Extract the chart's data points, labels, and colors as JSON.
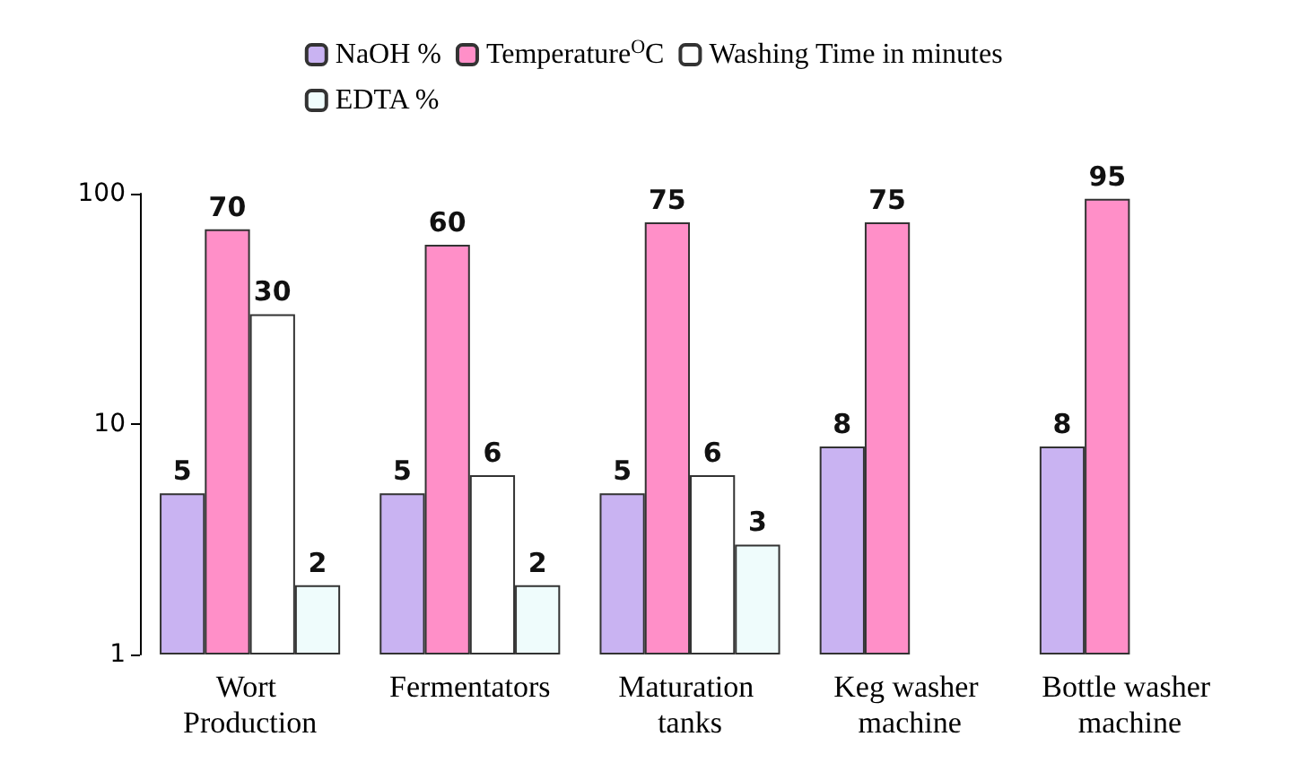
{
  "chart_data": {
    "type": "bar",
    "categories": [
      "Wort Production",
      "Fermentators",
      "Maturation tanks",
      "Keg washer machine",
      "Bottle washer machine"
    ],
    "series": [
      {
        "name": "NaOH %",
        "color": "#c9b3f2",
        "values": [
          5,
          5,
          5,
          8,
          8
        ]
      },
      {
        "name": "Temperature$^{O}$C",
        "color": "#ff8fc8",
        "values": [
          70,
          60,
          75,
          75,
          95
        ]
      },
      {
        "name": "Washing Time in minutes",
        "color": "#ffffff",
        "values": [
          30,
          6,
          6,
          null,
          null
        ]
      },
      {
        "name": "EDTA %",
        "color": "#effcfc",
        "values": [
          2,
          2,
          3,
          null,
          null
        ]
      }
    ],
    "log": true,
    "ylim": [
      1,
      100
    ],
    "yticks": [
      1,
      10,
      100
    ],
    "data_labels": true,
    "legend": "top",
    "grid": false
  }
}
